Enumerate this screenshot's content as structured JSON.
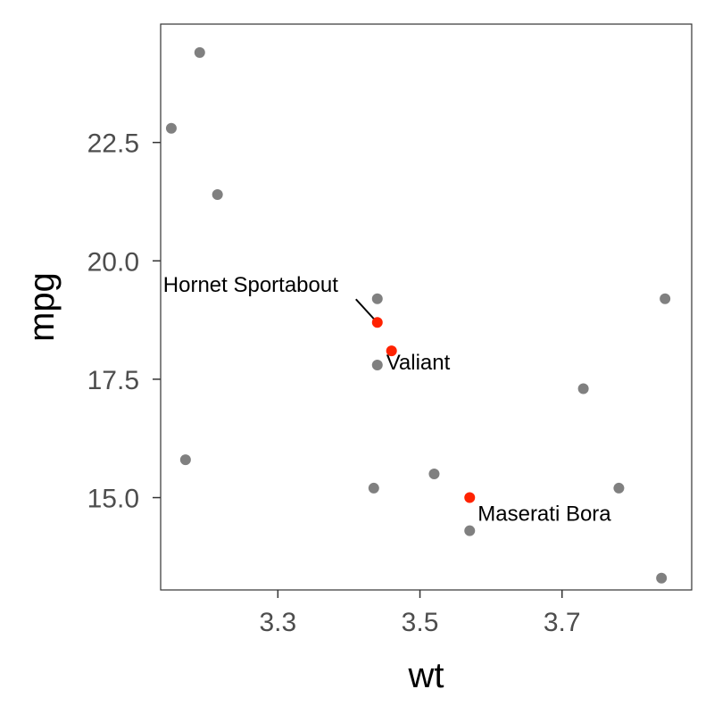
{
  "chart_data": {
    "type": "scatter",
    "title": "",
    "xlabel": "wt",
    "ylabel": "mpg",
    "xlim": [
      3.135,
      3.8825
    ],
    "ylim": [
      13.05,
      25.0
    ],
    "grid": false,
    "legend": "none",
    "x_ticks": [
      3.3,
      3.5,
      3.7
    ],
    "x_tick_labels": [
      "3.3",
      "3.5",
      "3.7"
    ],
    "y_ticks": [
      15.0,
      17.5,
      20.0,
      22.5
    ],
    "y_tick_labels": [
      "15.0",
      "17.5",
      "20.0",
      "22.5"
    ],
    "colors": {
      "point": "#808080",
      "highlight": "#ff2200",
      "text": "#000000",
      "tick": "#4d4d4d",
      "border": "#333333"
    },
    "points": [
      {
        "x": 3.19,
        "y": 24.4,
        "highlight": false
      },
      {
        "x": 3.15,
        "y": 22.8,
        "highlight": false
      },
      {
        "x": 3.215,
        "y": 21.4,
        "highlight": false
      },
      {
        "x": 3.17,
        "y": 15.8,
        "highlight": false
      },
      {
        "x": 3.44,
        "y": 19.2,
        "highlight": false
      },
      {
        "x": 3.44,
        "y": 18.7,
        "highlight": true
      },
      {
        "x": 3.46,
        "y": 18.1,
        "highlight": true
      },
      {
        "x": 3.44,
        "y": 17.8,
        "highlight": false
      },
      {
        "x": 3.435,
        "y": 15.2,
        "highlight": false
      },
      {
        "x": 3.52,
        "y": 15.5,
        "highlight": false
      },
      {
        "x": 3.57,
        "y": 15.0,
        "highlight": true
      },
      {
        "x": 3.57,
        "y": 14.3,
        "highlight": false
      },
      {
        "x": 3.73,
        "y": 17.3,
        "highlight": false
      },
      {
        "x": 3.78,
        "y": 15.2,
        "highlight": false
      },
      {
        "x": 3.845,
        "y": 19.2,
        "highlight": false
      },
      {
        "x": 3.84,
        "y": 13.3,
        "highlight": false
      }
    ],
    "annotations": [
      {
        "text": "Hornet Sportabout",
        "x": 3.44,
        "y": 18.7
      },
      {
        "text": "Valiant",
        "x": 3.46,
        "y": 18.1
      },
      {
        "text": "Maserati Bora",
        "x": 3.57,
        "y": 15.0
      }
    ]
  }
}
